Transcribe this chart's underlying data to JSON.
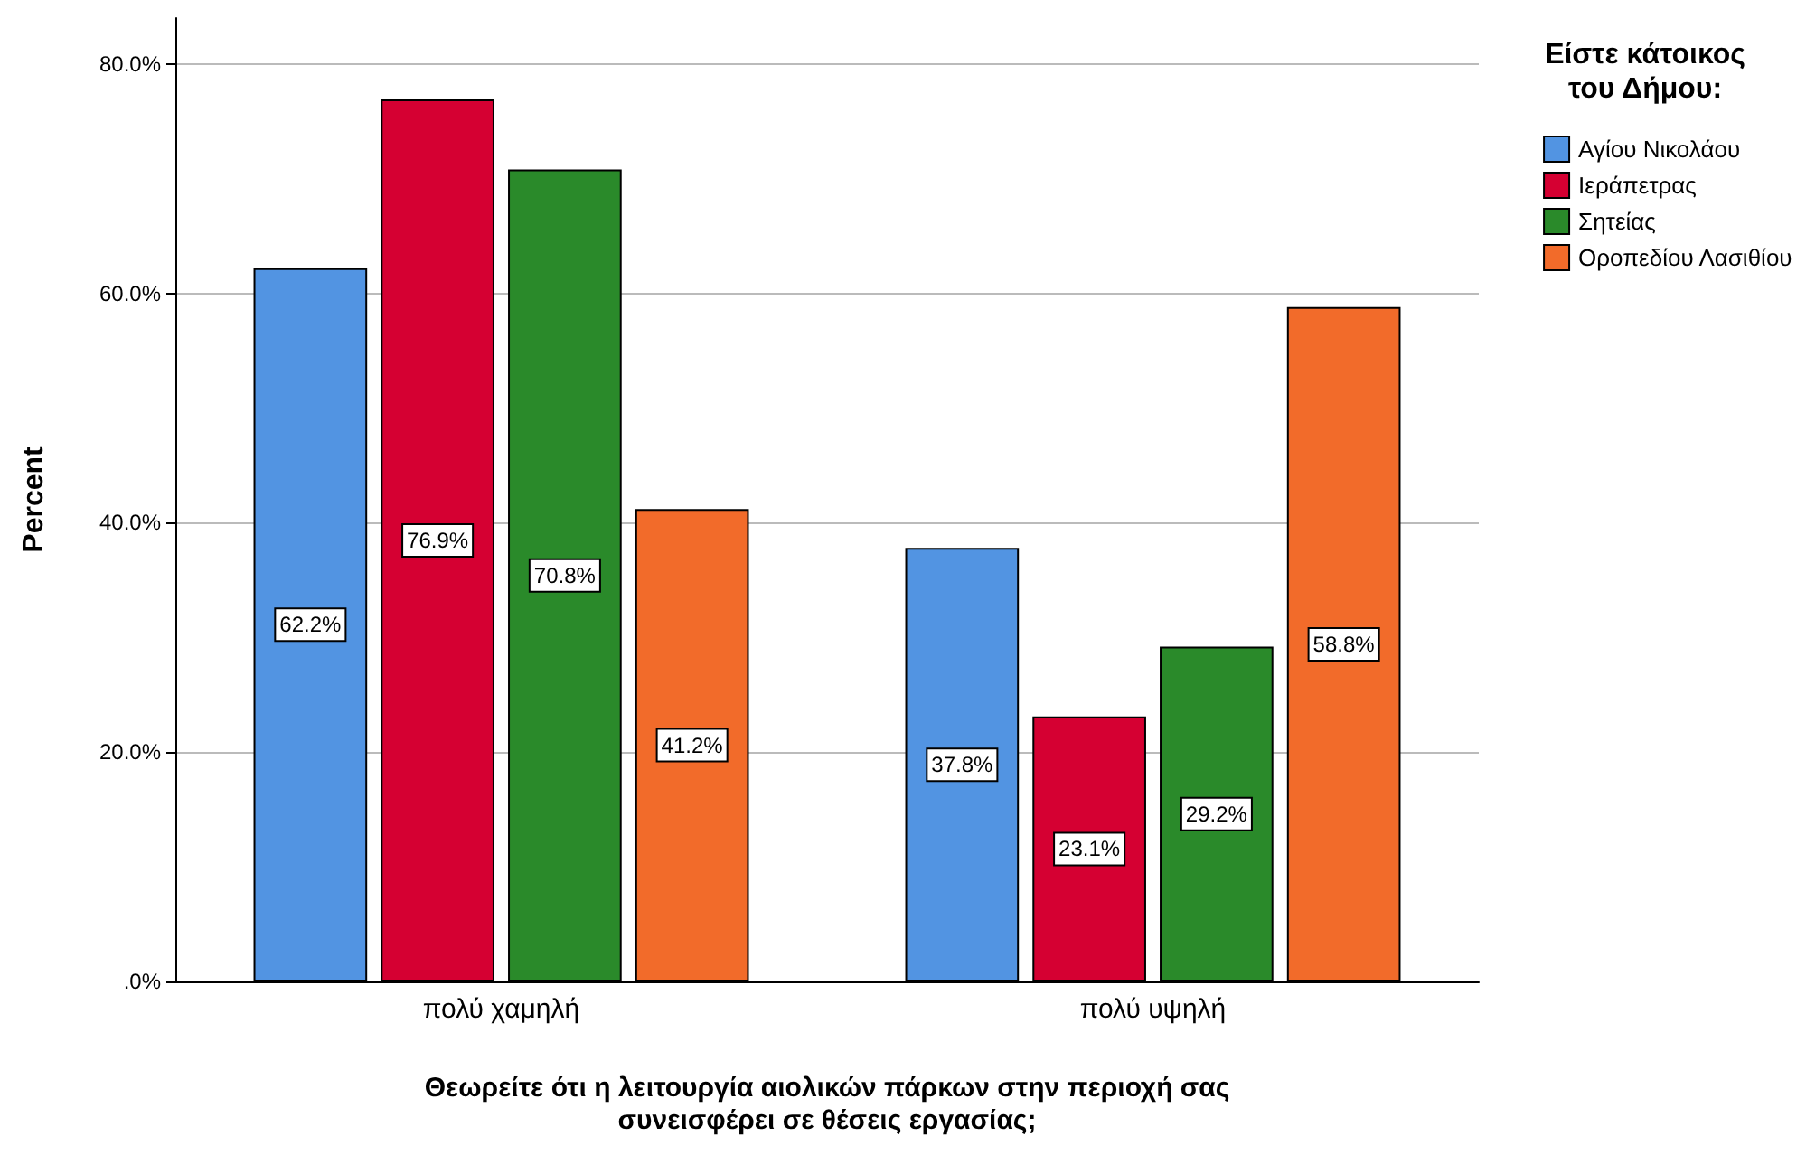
{
  "chart_data": {
    "type": "bar",
    "xlabel": "Θεωρείτε ότι η λειτουργία αιολικών πάρκων στην περιοχή σας\nσυνεισφέρει σε θέσεις εργασίας;",
    "ylabel": "Percent",
    "legend_title": "Είστε κάτοικος\nτου Δήμου:",
    "categories": [
      "πολύ χαμηλή",
      "πολύ υψηλή"
    ],
    "series": [
      {
        "name": "Αγίου Νικολάου",
        "color": "#5294e2",
        "values": [
          62.2,
          37.8
        ],
        "value_labels": [
          "62.2%",
          "37.8%"
        ]
      },
      {
        "name": "Ιεράπετρας",
        "color": "#d50032",
        "values": [
          76.9,
          23.1
        ],
        "value_labels": [
          "76.9%",
          "23.1%"
        ]
      },
      {
        "name": "Σητείας",
        "color": "#2a8a2a",
        "values": [
          70.8,
          29.2
        ],
        "value_labels": [
          "70.8%",
          "29.2%"
        ]
      },
      {
        "name": "Οροπεδίου Λασιθίου",
        "color": "#f26b2a",
        "values": [
          41.2,
          58.8
        ],
        "value_labels": [
          "41.2%",
          "58.8%"
        ]
      }
    ],
    "ylim": [
      0,
      84
    ],
    "yticks": [
      {
        "value": 0,
        "label": ".0%"
      },
      {
        "value": 20,
        "label": "20.0%"
      },
      {
        "value": 40,
        "label": "40.0%"
      },
      {
        "value": 60,
        "label": "60.0%"
      },
      {
        "value": 80,
        "label": "80.0%"
      }
    ],
    "grid": "y",
    "legend": "top right"
  }
}
